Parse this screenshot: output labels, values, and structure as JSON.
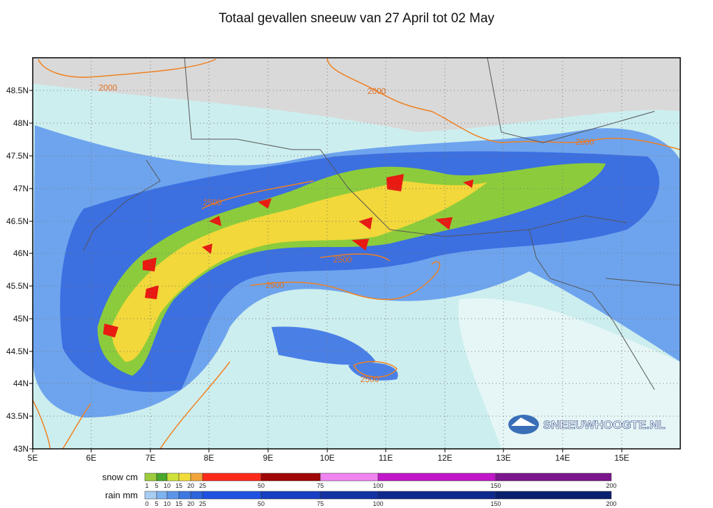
{
  "title": "Totaal gevallen sneeuw van 27 April tot 02 May",
  "map": {
    "lat_labels": [
      "48.5N",
      "48N",
      "47.5N",
      "47N",
      "46.5N",
      "46N",
      "45.5N",
      "45N",
      "44.5N",
      "44N",
      "43.5N",
      "43N"
    ],
    "lon_labels": [
      "5E",
      "6E",
      "7E",
      "8E",
      "9E",
      "10E",
      "11E",
      "12E",
      "13E",
      "14E",
      "15E"
    ],
    "contour_labels": [
      "2000",
      "2000",
      "2000",
      "2500",
      "2500",
      "2500",
      "2500"
    ]
  },
  "logo": "SNEEUWHOOGTE.NL",
  "legend": {
    "snow": {
      "title": "snow cm",
      "ticks": [
        "1",
        "5",
        "10",
        "15",
        "20",
        "25",
        "50",
        "75",
        "100",
        "150",
        "200"
      ],
      "colors": [
        "#9ccc3c",
        "#4aa82c",
        "#cfe23a",
        "#f2dc3a",
        "#f2a43a",
        "#ff2a1a",
        "#a00808",
        "#f084f0",
        "#c018c8",
        "#7c168c"
      ]
    },
    "rain": {
      "title": "rain mm",
      "ticks": [
        "0",
        "5",
        "10",
        "15",
        "20",
        "25",
        "50",
        "75",
        "100",
        "150",
        "200"
      ],
      "colors": [
        "#a8cdf2",
        "#7eb2f0",
        "#5c94ea",
        "#3c78e2",
        "#2c64dc",
        "#2052e2",
        "#1840c2",
        "#1232a4",
        "#0e2a8e",
        "#0a206e"
      ]
    }
  }
}
